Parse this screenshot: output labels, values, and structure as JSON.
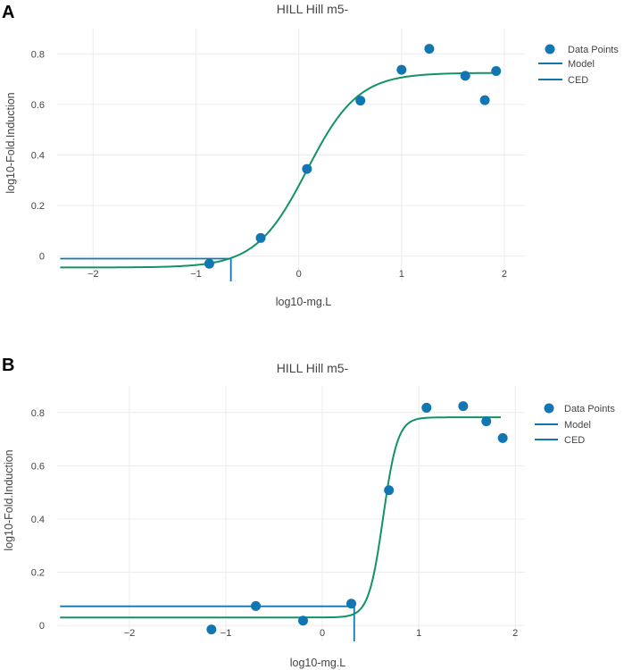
{
  "chart_data": [
    {
      "type": "scatter",
      "panel_label": "A",
      "title": "HILL Hill m5-",
      "xlabel": "log10-mg.L",
      "ylabel": "log10-Fold.Induction",
      "xlim": [
        -2.35,
        2.2
      ],
      "ylim": [
        -0.1,
        0.9
      ],
      "xticks": [
        -2,
        -1,
        0,
        1,
        2
      ],
      "xtick_labels": [
        "−2",
        "−1",
        "0",
        "1",
        "2"
      ],
      "yticks": [
        0,
        0.2,
        0.4,
        0.6,
        0.8
      ],
      "ytick_labels": [
        "0",
        "0.2",
        "0.4",
        "0.6",
        "0.8"
      ],
      "grid": true,
      "legend": [
        "Data Points",
        "Model",
        "CED"
      ],
      "legend_position": "top-right",
      "colors": {
        "points": "#1276b3",
        "model": "#139263",
        "ced": "#1276b3"
      },
      "series": [
        {
          "name": "Data Points",
          "x": [
            -0.87,
            -0.37,
            0.08,
            0.6,
            1.0,
            1.27,
            1.62,
            1.81,
            1.92
          ],
          "y": [
            -0.03,
            0.072,
            0.345,
            0.615,
            0.737,
            0.82,
            0.713,
            0.617,
            0.732
          ]
        },
        {
          "name": "Model",
          "model": "hill",
          "xrange": [
            -2.32,
            1.92
          ],
          "bottom": -0.045,
          "top": 0.725,
          "x50": 0.08,
          "slope": 1.75
        },
        {
          "name": "CED",
          "bmr_level": -0.01,
          "ced_x": -0.66,
          "x_start": -2.32
        }
      ]
    },
    {
      "type": "scatter",
      "panel_label": "B",
      "title": "HILL Hill m5-",
      "xlabel": "log10-mg.L",
      "ylabel": "log10-Fold.Induction",
      "xlim": [
        -2.75,
        2.1
      ],
      "ylim": [
        -0.06,
        0.9
      ],
      "xticks": [
        -2,
        -1,
        0,
        1,
        2
      ],
      "xtick_labels": [
        "−2",
        "−1",
        "0",
        "1",
        "2"
      ],
      "yticks": [
        0,
        0.2,
        0.4,
        0.6,
        0.8
      ],
      "ytick_labels": [
        "0",
        "0.2",
        "0.4",
        "0.6",
        "0.8"
      ],
      "grid": true,
      "legend": [
        "Data Points",
        "Model",
        "CED"
      ],
      "legend_position": "top-right",
      "colors": {
        "points": "#1276b3",
        "model": "#139263",
        "ced": "#1276b3"
      },
      "series": [
        {
          "name": "Data Points",
          "x": [
            -1.15,
            -0.69,
            -0.2,
            0.3,
            0.69,
            1.08,
            1.46,
            1.7,
            1.87
          ],
          "y": [
            -0.015,
            0.073,
            0.018,
            0.082,
            0.508,
            0.818,
            0.824,
            0.767,
            0.704
          ]
        },
        {
          "name": "Model",
          "model": "hill",
          "xrange": [
            -2.72,
            1.85
          ],
          "bottom": 0.03,
          "top": 0.782,
          "x50": 0.63,
          "slope": 5.8
        },
        {
          "name": "CED",
          "bmr_level": 0.072,
          "ced_x": 0.33,
          "x_start": -2.72
        }
      ]
    }
  ]
}
